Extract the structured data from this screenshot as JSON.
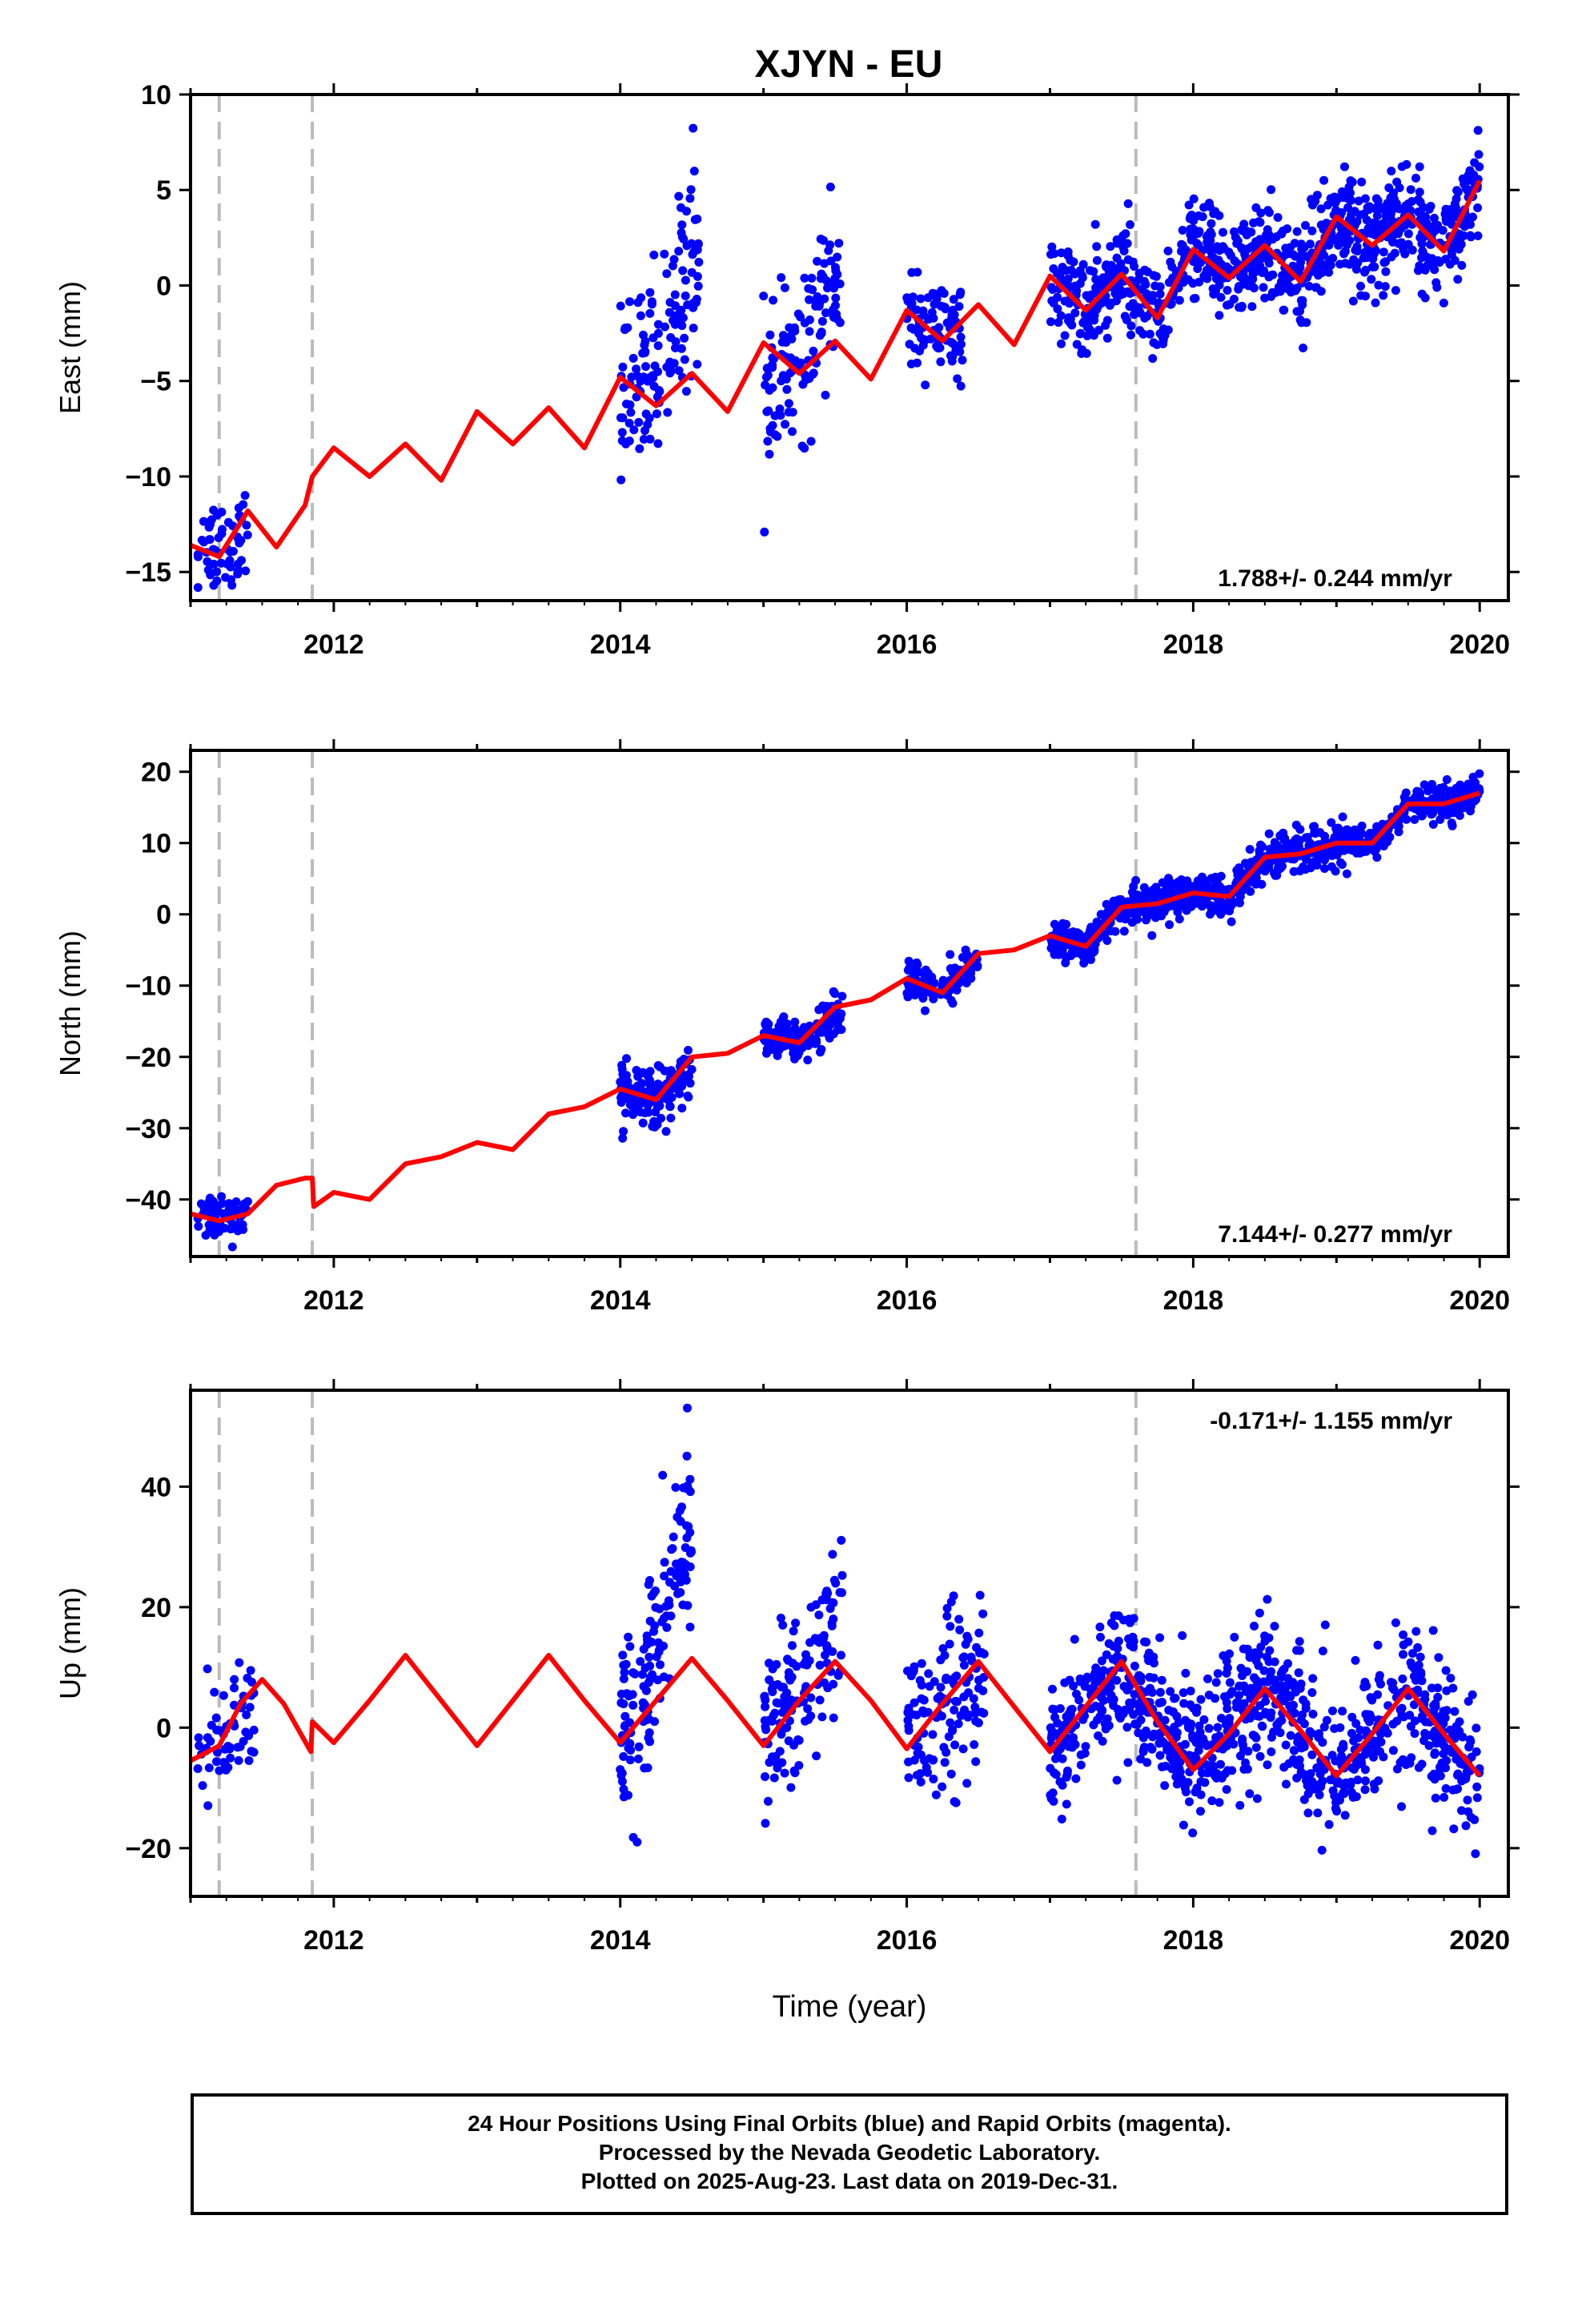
{
  "figure": {
    "title": "XJYN - EU"
  },
  "colors": {
    "data": "#0000ff",
    "model": "#ff0000",
    "break": "#bbbbbb",
    "axis": "#000000"
  },
  "chart_data": [
    {
      "type": "scatter",
      "id": "east",
      "xlabel": "",
      "ylabel": "East (mm)",
      "xlim": [
        2011.0,
        2020.2
      ],
      "ylim": [
        -16.5,
        10
      ],
      "xticks": [
        2012,
        2014,
        2016,
        2018,
        2020
      ],
      "yticks": [
        -15,
        -10,
        -5,
        0,
        5,
        10
      ],
      "ytick_labels": [
        "−15",
        "−10",
        "−5",
        "0",
        "5",
        "10"
      ],
      "rate_label": "1.788+/- 0.244 mm/yr",
      "rate_position": "bottom-right",
      "breaks": [
        2011.2,
        2011.85,
        2017.6
      ],
      "model": {
        "rate": 1.788,
        "annual_amplitude": 1.0,
        "annual_phase": 0.0,
        "offset_at_2011": -13.5,
        "offsets": [
          {
            "t": 2011.85,
            "jump": 1.5
          },
          {
            "t": 2017.6,
            "jump": 0.0
          }
        ],
        "x": [
          2011.0,
          2011.2,
          2011.4,
          2011.6,
          2011.8,
          2011.85,
          2012.0,
          2012.25,
          2012.5,
          2012.75,
          2013.0,
          2013.25,
          2013.5,
          2013.75,
          2014.0,
          2014.25,
          2014.5,
          2014.75,
          2015.0,
          2015.25,
          2015.5,
          2015.75,
          2016.0,
          2016.25,
          2016.5,
          2016.75,
          2017.0,
          2017.25,
          2017.5,
          2017.75,
          2018.0,
          2018.25,
          2018.5,
          2018.75,
          2019.0,
          2019.25,
          2019.5,
          2019.75,
          2020.0
        ],
        "y": [
          -13.6,
          -14.2,
          -11.8,
          -13.7,
          -11.5,
          -10.0,
          -8.5,
          -10.0,
          -8.3,
          -10.2,
          -6.6,
          -8.3,
          -6.4,
          -8.5,
          -4.8,
          -6.3,
          -4.6,
          -6.6,
          -3.0,
          -4.6,
          -2.9,
          -4.9,
          -1.3,
          -2.9,
          -1.0,
          -3.1,
          0.5,
          -1.3,
          0.6,
          -1.7,
          1.9,
          0.4,
          2.1,
          0.2,
          3.6,
          2.1,
          3.7,
          1.8,
          5.5
        ]
      },
      "observations": [
        {
          "t_start": 2011.05,
          "t_end": 2011.4,
          "center": -13.6,
          "spread": 1.3,
          "density": 60
        },
        {
          "t_start": 2014.0,
          "t_end": 2014.55,
          "center": -4.0,
          "spread": 2.5,
          "density": 140,
          "trend": 6.0
        },
        {
          "t_start": 2015.0,
          "t_end": 2015.55,
          "center": -4.0,
          "spread": 2.0,
          "density": 130,
          "trend": 5.0
        },
        {
          "t_start": 2016.0,
          "t_end": 2016.4,
          "center": -2.6,
          "spread": 1.2,
          "density": 90
        },
        {
          "t_start": 2017.0,
          "t_end": 2020.0,
          "center": 0.0,
          "spread": 1.3,
          "density": 900,
          "follow_model": true
        }
      ]
    },
    {
      "type": "scatter",
      "id": "north",
      "xlabel": "",
      "ylabel": "North (mm)",
      "xlim": [
        2011.0,
        2020.2
      ],
      "ylim": [
        -48,
        23
      ],
      "xticks": [
        2012,
        2014,
        2016,
        2018,
        2020
      ],
      "yticks": [
        -40,
        -30,
        -20,
        -10,
        0,
        10,
        20
      ],
      "ytick_labels": [
        "−40",
        "−30",
        "−20",
        "−10",
        "0",
        "10",
        "20"
      ],
      "rate_label": "7.144+/- 0.277 mm/yr",
      "rate_position": "bottom-right",
      "breaks": [
        2011.2,
        2011.85,
        2017.6
      ],
      "model": {
        "x": [
          2011.0,
          2011.2,
          2011.4,
          2011.6,
          2011.8,
          2011.85,
          2011.86,
          2012.0,
          2012.25,
          2012.5,
          2012.75,
          2013.0,
          2013.25,
          2013.5,
          2013.75,
          2014.0,
          2014.25,
          2014.5,
          2014.75,
          2015.0,
          2015.25,
          2015.5,
          2015.75,
          2016.0,
          2016.25,
          2016.5,
          2016.75,
          2017.0,
          2017.25,
          2017.5,
          2017.75,
          2018.0,
          2018.25,
          2018.5,
          2018.75,
          2019.0,
          2019.25,
          2019.5,
          2019.75,
          2020.0
        ],
        "y": [
          -42,
          -43,
          -42,
          -38,
          -37,
          -37,
          -41,
          -39,
          -40,
          -35,
          -34,
          -32,
          -33,
          -28,
          -27,
          -24.5,
          -26,
          -20,
          -19.5,
          -17,
          -18,
          -13,
          -12,
          -9,
          -11,
          -5.5,
          -5,
          -3,
          -4.5,
          1,
          1.5,
          3,
          2.5,
          8,
          8.5,
          10,
          10,
          15.5,
          15.5,
          17
        ]
      },
      "observations": [
        {
          "t_start": 2011.05,
          "t_end": 2011.4,
          "center": -43,
          "spread": 1.5,
          "density": 60
        },
        {
          "t_start": 2014.0,
          "t_end": 2014.5,
          "center": -25,
          "spread": 2.0,
          "density": 140
        },
        {
          "t_start": 2015.0,
          "t_end": 2015.55,
          "center": -17,
          "spread": 1.5,
          "density": 130
        },
        {
          "t_start": 2016.0,
          "t_end": 2016.5,
          "center": -9.5,
          "spread": 1.5,
          "density": 110
        },
        {
          "t_start": 2017.0,
          "t_end": 2020.0,
          "center": 0,
          "spread": 1.3,
          "density": 900,
          "follow_model": true
        }
      ]
    },
    {
      "type": "scatter",
      "id": "up",
      "xlabel": "Time (year)",
      "ylabel": "Up (mm)",
      "xlim": [
        2011.0,
        2020.2
      ],
      "ylim": [
        -28,
        56
      ],
      "xticks": [
        2012,
        2014,
        2016,
        2018,
        2020
      ],
      "yticks": [
        -20,
        0,
        20,
        40
      ],
      "ytick_labels": [
        "−20",
        "0",
        "20",
        "40"
      ],
      "rate_label": "-0.171+/- 1.155 mm/yr",
      "rate_position": "top-right",
      "breaks": [
        2011.2,
        2011.85,
        2017.6
      ],
      "model": {
        "x": [
          2011.0,
          2011.2,
          2011.35,
          2011.5,
          2011.65,
          2011.84,
          2011.85,
          2012.0,
          2012.25,
          2012.5,
          2012.75,
          2013.0,
          2013.25,
          2013.5,
          2013.75,
          2014.0,
          2014.25,
          2014.5,
          2014.75,
          2015.0,
          2015.25,
          2015.5,
          2015.75,
          2016.0,
          2016.25,
          2016.5,
          2016.75,
          2017.0,
          2017.25,
          2017.5,
          2017.75,
          2018.0,
          2018.25,
          2018.5,
          2018.75,
          2019.0,
          2019.25,
          2019.5,
          2019.75,
          2020.0
        ],
        "y": [
          -5.5,
          -3,
          4,
          8,
          4,
          -4,
          1,
          -2.5,
          4.5,
          12,
          4.5,
          -3,
          4.5,
          12,
          4.5,
          -2.5,
          4.5,
          11.5,
          4.5,
          -3,
          4.5,
          11,
          4.5,
          -3.5,
          4,
          11,
          3.5,
          -4,
          3.5,
          11,
          1,
          -7,
          -1,
          6.5,
          -0.5,
          -8,
          -1,
          6.5,
          -1,
          -8
        ]
      },
      "observations": [
        {
          "t_start": 2011.05,
          "t_end": 2011.45,
          "center": 0,
          "spread": 5,
          "density": 60
        },
        {
          "t_start": 2014.0,
          "t_end": 2014.5,
          "center": 8,
          "spread": 8,
          "density": 150,
          "trend": 28
        },
        {
          "t_start": 2015.0,
          "t_end": 2015.55,
          "center": 5,
          "spread": 7,
          "density": 140,
          "trend": 15
        },
        {
          "t_start": 2016.0,
          "t_end": 2016.55,
          "center": 2,
          "spread": 7,
          "density": 130
        },
        {
          "t_start": 2017.0,
          "t_end": 2020.0,
          "center": 0,
          "spread": 6,
          "density": 900,
          "follow_model": true
        }
      ]
    }
  ],
  "footer": {
    "line1": "24 Hour Positions Using Final Orbits (blue) and Rapid Orbits (magenta).",
    "line2": "Processed by the Nevada Geodetic Laboratory.",
    "line3": "Plotted on 2025-Aug-23. Last data on 2019-Dec-31."
  }
}
